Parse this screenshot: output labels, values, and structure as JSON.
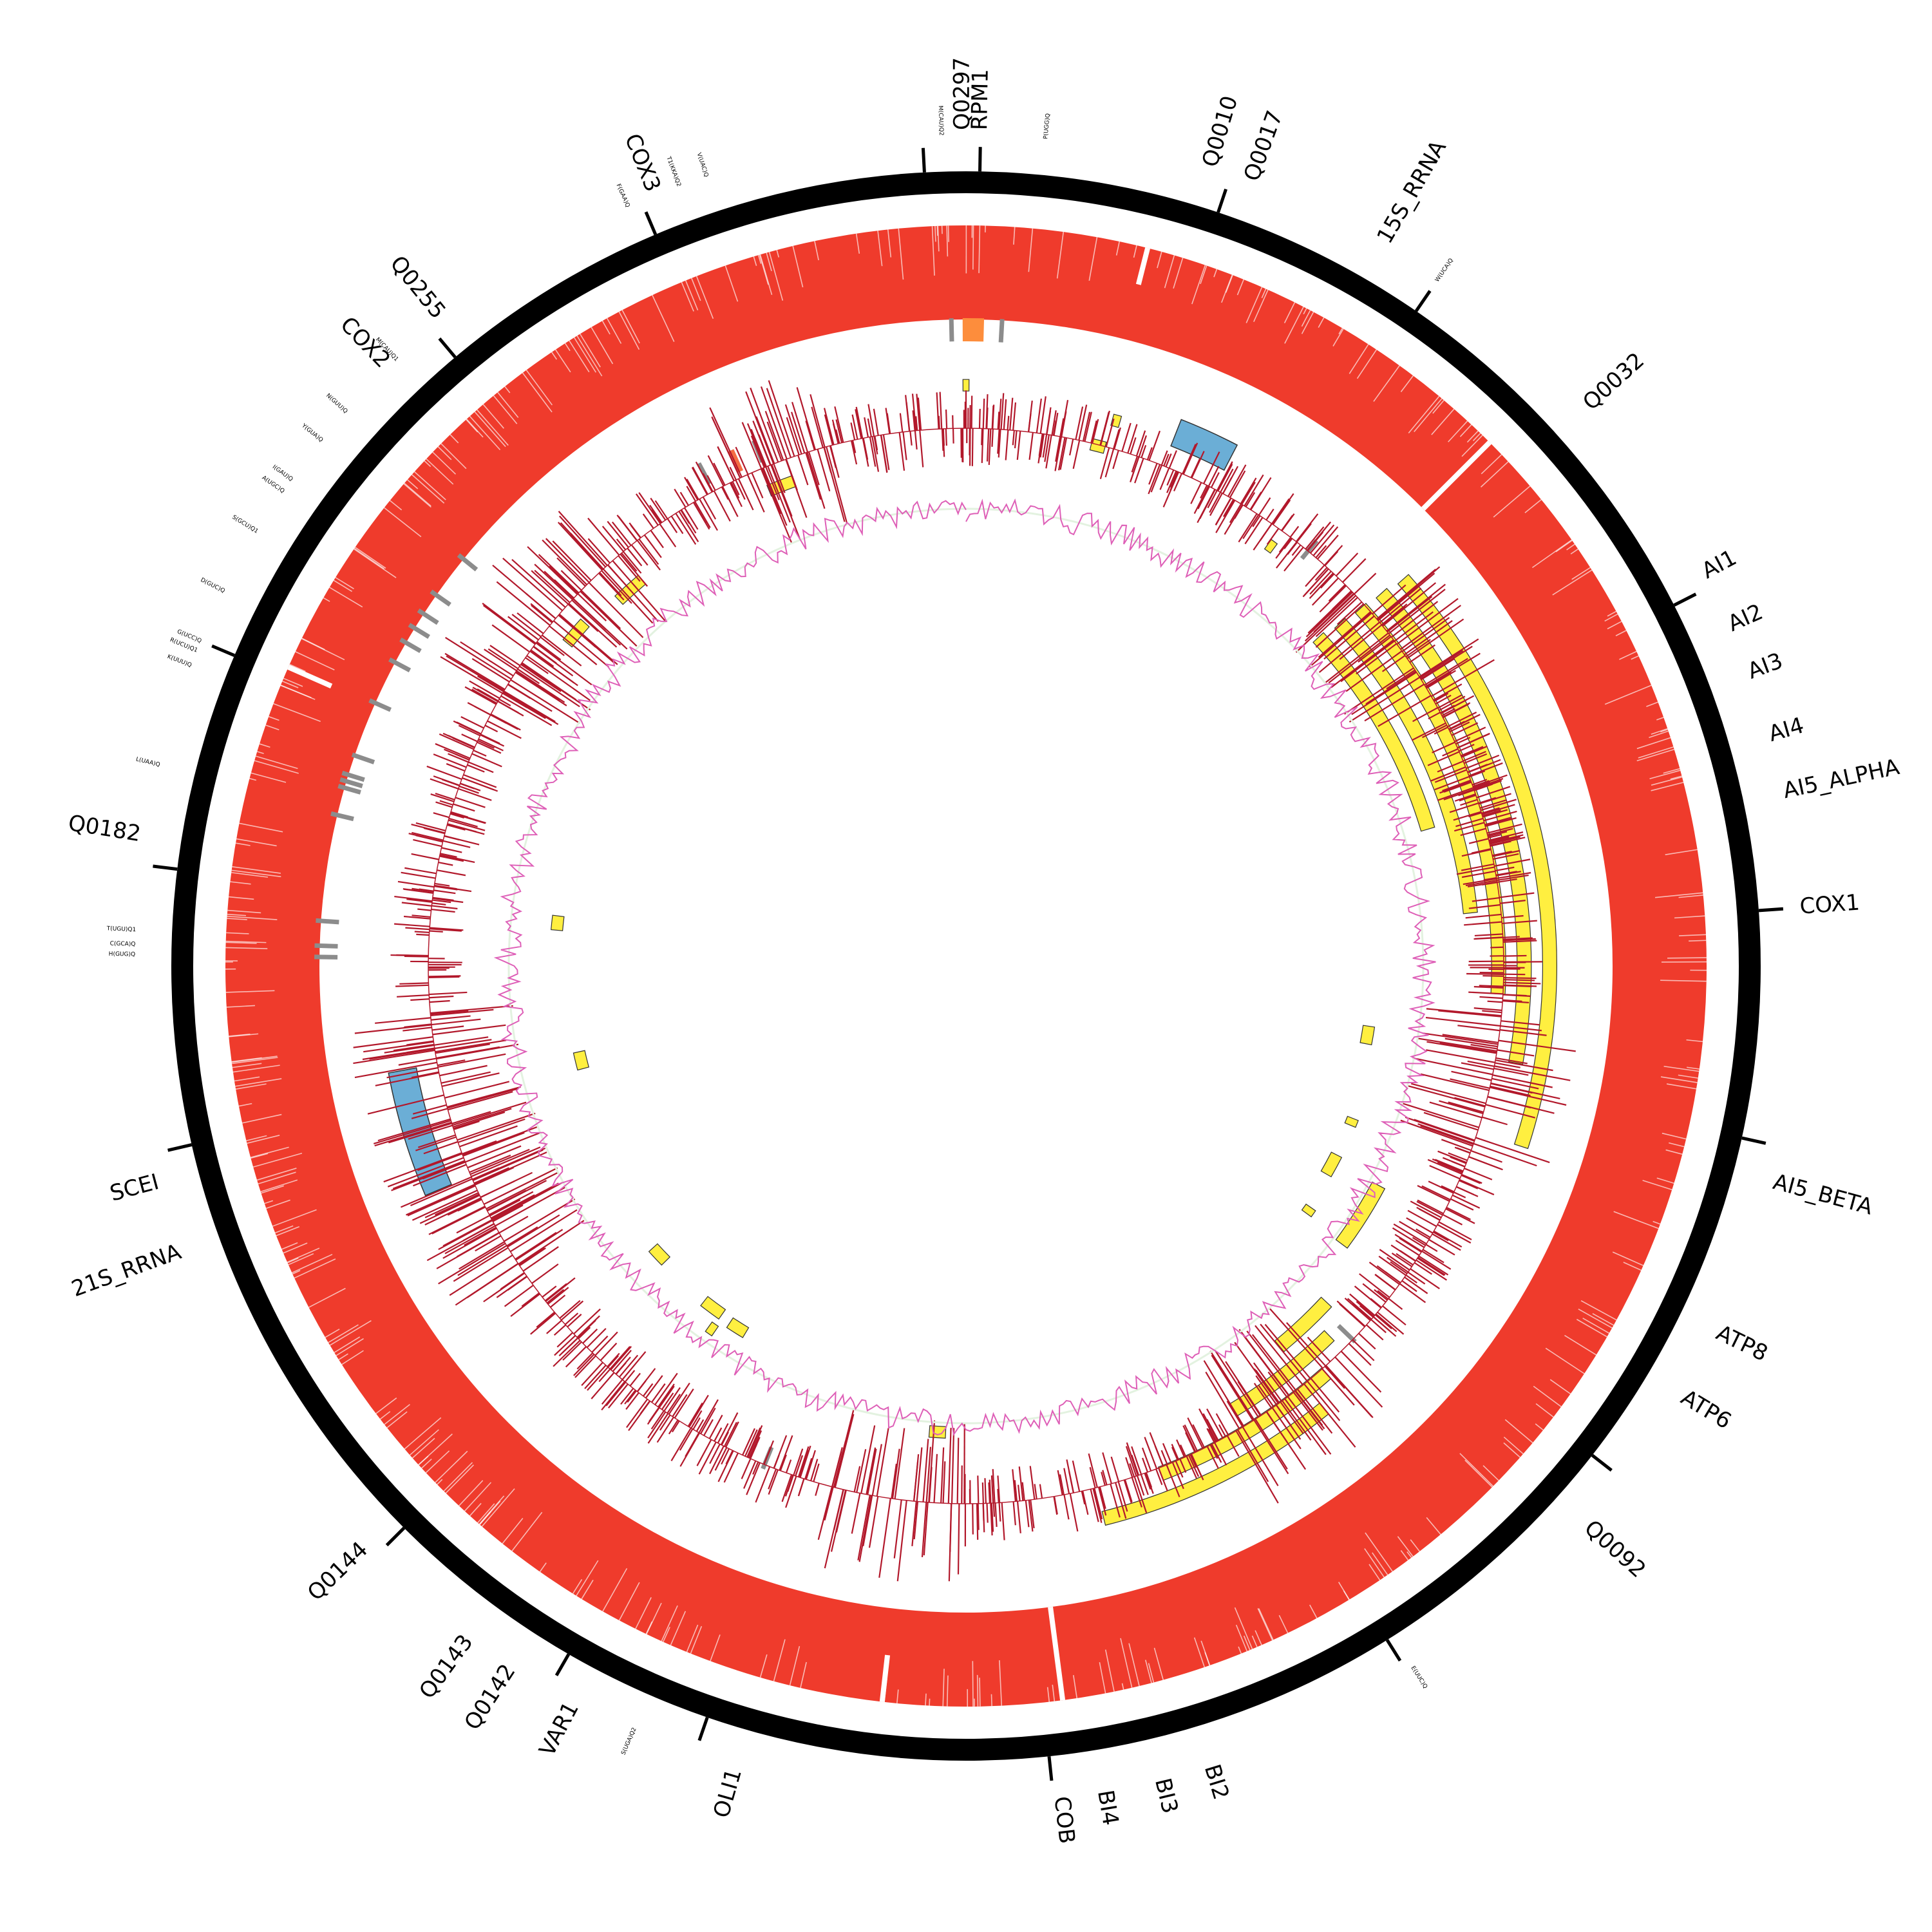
{
  "colors": {
    "backbone": "#000000",
    "coverage": "#ef3b2c",
    "exon": "#ffef40",
    "rrna": "#6baed6",
    "trna_mark": "#8c8c8c",
    "highlight": "#fd8d3c",
    "highlight2": "#f46d43",
    "variant_track": "#b2182b",
    "gc_skew_pos": "#de5fb7",
    "gc_skew_neg": "#e3f2e0"
  },
  "genes": [
    {
      "label": "Q0297",
      "angle": -0.2
    },
    {
      "label": "RPM1",
      "angle": 1.0
    },
    {
      "label": "Q0010",
      "angle": 17.0
    },
    {
      "label": "Q0017",
      "angle": 20.0
    },
    {
      "label": "15S_RRNA",
      "angle": 30.0
    },
    {
      "label": "Q0032",
      "angle": 48.0
    },
    {
      "label": "AI1",
      "angle": 62.0
    },
    {
      "label": "AI2",
      "angle": 66.0
    },
    {
      "label": "AI3",
      "angle": 69.5
    },
    {
      "label": "AI4",
      "angle": 74.0
    },
    {
      "label": "AI5_ALPHA",
      "angle": 78.0
    },
    {
      "label": "COX1",
      "angle": 86.0
    },
    {
      "label": "AI5_BETA",
      "angle": 105.0
    },
    {
      "label": "ATP8",
      "angle": 116.0
    },
    {
      "label": "ATP6",
      "angle": 121.0
    },
    {
      "label": "Q0092",
      "angle": 132.0
    },
    {
      "label": "BI2",
      "angle": 163.0
    },
    {
      "label": "BI3",
      "angle": 166.5
    },
    {
      "label": "BI4",
      "angle": 170.5
    },
    {
      "label": "COB",
      "angle": 173.5
    },
    {
      "label": "OLI1",
      "angle": 196.0
    },
    {
      "label": "VAR1",
      "angle": 208.0
    },
    {
      "label": "Q0142",
      "angle": 213.0
    },
    {
      "label": "Q0143",
      "angle": 216.5
    },
    {
      "label": "Q0144",
      "angle": 226.0
    },
    {
      "label": "21S_RRNA",
      "angle": 250.0
    },
    {
      "label": "SCEI",
      "angle": 255.0
    },
    {
      "label": "Q0182",
      "angle": 279.0
    },
    {
      "label": "COX2",
      "angle": 316.0
    },
    {
      "label": "Q0255",
      "angle": 321.0
    },
    {
      "label": "COX3",
      "angle": 338.0
    }
  ],
  "ticks": [
    -3.0,
    1.0,
    18.5,
    34.5,
    63.0,
    86.0,
    102.5,
    128.0,
    148.0,
    174.0,
    199.0,
    210.0,
    225.0,
    257.0,
    277.0,
    293.0,
    320.0,
    337.0
  ],
  "trnas": [
    {
      "label": "M(CAU)Q2",
      "angle": -1.7
    },
    {
      "label": "P(UGG)Q",
      "angle": 5.5
    },
    {
      "label": "W(UCA)Q",
      "angle": 34.5
    },
    {
      "label": "E(UUC)Q",
      "angle": 147.5
    },
    {
      "label": "S(UGA)Q2",
      "angle": 203.5
    },
    {
      "label": "T(UGU)Q1",
      "angle": 272.5
    },
    {
      "label": "C(GCA)Q",
      "angle": 271.5
    },
    {
      "label": "H(GUG)Q",
      "angle": 270.8
    },
    {
      "label": "L(UAA)Q",
      "angle": 284.0
    },
    {
      "label": "K(UUU)Q",
      "angle": 291.2
    },
    {
      "label": "R(UCU)Q1",
      "angle": 292.3
    },
    {
      "label": "G(UCC)Q",
      "angle": 293.0
    },
    {
      "label": "D(GUC)Q",
      "angle": 296.8
    },
    {
      "label": "S(GCU)Q1",
      "angle": 301.5
    },
    {
      "label": "A(UGC)Q",
      "angle": 304.8
    },
    {
      "label": "I(GAU)Q",
      "angle": 305.8
    },
    {
      "label": "Y(GUA)Q",
      "angle": 309.2
    },
    {
      "label": "N(GUU)Q",
      "angle": 311.8
    },
    {
      "label": "M(CAU)Q1",
      "angle": 316.8
    },
    {
      "label": "F(GAA)Q",
      "angle": 336.0
    },
    {
      "label": "T1(KKA)Q2",
      "angle": 339.8
    },
    {
      "label": "V(UAC)Q",
      "angle": 341.8
    }
  ],
  "coverage_gaps": [
    {
      "angle": 14.2,
      "depth": 0.4
    },
    {
      "angle": 45.0,
      "depth": 1.0
    },
    {
      "angle": 172.5,
      "depth": 1.0
    },
    {
      "angle": 186.5,
      "depth": 0.5
    },
    {
      "angle": 293.8,
      "depth": 0.5
    }
  ],
  "exons": [
    {
      "r": 575,
      "start": 47.0,
      "end": 73.5
    },
    {
      "r": 605,
      "start": 47.5,
      "end": 84.0
    },
    {
      "r": 635,
      "start": 47.8,
      "end": 93.0
    },
    {
      "r": 665,
      "start": 48.1,
      "end": 100.0
    },
    {
      "r": 695,
      "start": 48.5,
      "end": 108.0
    },
    {
      "r": 558,
      "start": 118.0,
      "end": 126.5
    },
    {
      "r": 588,
      "start": 133.0,
      "end": 140.5
    },
    {
      "r": 618,
      "start": 135.5,
      "end": 149.0
    },
    {
      "r": 648,
      "start": 138.5,
      "end": 159.0
    },
    {
      "r": 678,
      "start": 141.0,
      "end": 166.0
    },
    {
      "r": 690,
      "start": -0.3,
      "end": 0.3
    },
    {
      "r": 638,
      "start": 13.5,
      "end": 15.0
    },
    {
      "r": 672,
      "start": 15.0,
      "end": 15.8
    },
    {
      "r": 617,
      "start": 35.6,
      "end": 36.4
    },
    {
      "r": 486,
      "start": 98.5,
      "end": 101.0
    },
    {
      "r": 496,
      "start": 111.5,
      "end": 112.5
    },
    {
      "r": 496,
      "start": 117.0,
      "end": 120.0
    },
    {
      "r": 502,
      "start": 125.0,
      "end": 126.0
    },
    {
      "r": 556,
      "start": 182.5,
      "end": 184.5
    },
    {
      "r": 510,
      "start": 211.0,
      "end": 213.5
    },
    {
      "r": 507,
      "start": 215.0,
      "end": 218.0
    },
    {
      "r": 528,
      "start": 214.5,
      "end": 215.5
    },
    {
      "r": 502,
      "start": 225.5,
      "end": 228.0
    },
    {
      "r": 473,
      "start": 255.0,
      "end": 257.5
    },
    {
      "r": 490,
      "start": 275.0,
      "end": 277.0
    },
    {
      "r": 610,
      "start": 309.0,
      "end": 312.0
    },
    {
      "r": 600,
      "start": 316.5,
      "end": 320.0
    },
    {
      "r": 612,
      "start": 337.5,
      "end": 340.5
    }
  ],
  "rrnas": [
    {
      "start": 21.5,
      "end": 27.5
    },
    {
      "start": 247.0,
      "end": 259.5
    }
  ],
  "highlights": [
    {
      "start": -0.3,
      "end": 1.6,
      "r": 988
    },
    {
      "start": 335.2,
      "end": 335.8,
      "r": 862
    }
  ],
  "trna_marks": [
    {
      "angle": -1.3,
      "r": 988
    },
    {
      "angle": 3.2,
      "r": 988
    },
    {
      "angle": 39.5,
      "r": 838
    },
    {
      "angle": 134.0,
      "r": 822
    },
    {
      "angle": 202.0,
      "r": 824
    },
    {
      "angle": 274.0,
      "r": 994
    },
    {
      "angle": 271.8,
      "r": 994
    },
    {
      "angle": 270.8,
      "r": 994
    },
    {
      "angle": 283.5,
      "r": 996
    },
    {
      "angle": 286.0,
      "r": 996
    },
    {
      "angle": 286.6,
      "r": 996
    },
    {
      "angle": 287.2,
      "r": 996
    },
    {
      "angle": 289.0,
      "r": 990
    },
    {
      "angle": 294.0,
      "r": 996
    },
    {
      "angle": 298.0,
      "r": 996
    },
    {
      "angle": 300.0,
      "r": 996
    },
    {
      "angle": 301.5,
      "r": 996
    },
    {
      "angle": 303.0,
      "r": 996
    },
    {
      "angle": 305.0,
      "r": 996
    },
    {
      "angle": 309.0,
      "r": 996
    },
    {
      "angle": 332.0,
      "r": 866
    },
    {
      "angle": 338.0,
      "r": 862
    }
  ]
}
